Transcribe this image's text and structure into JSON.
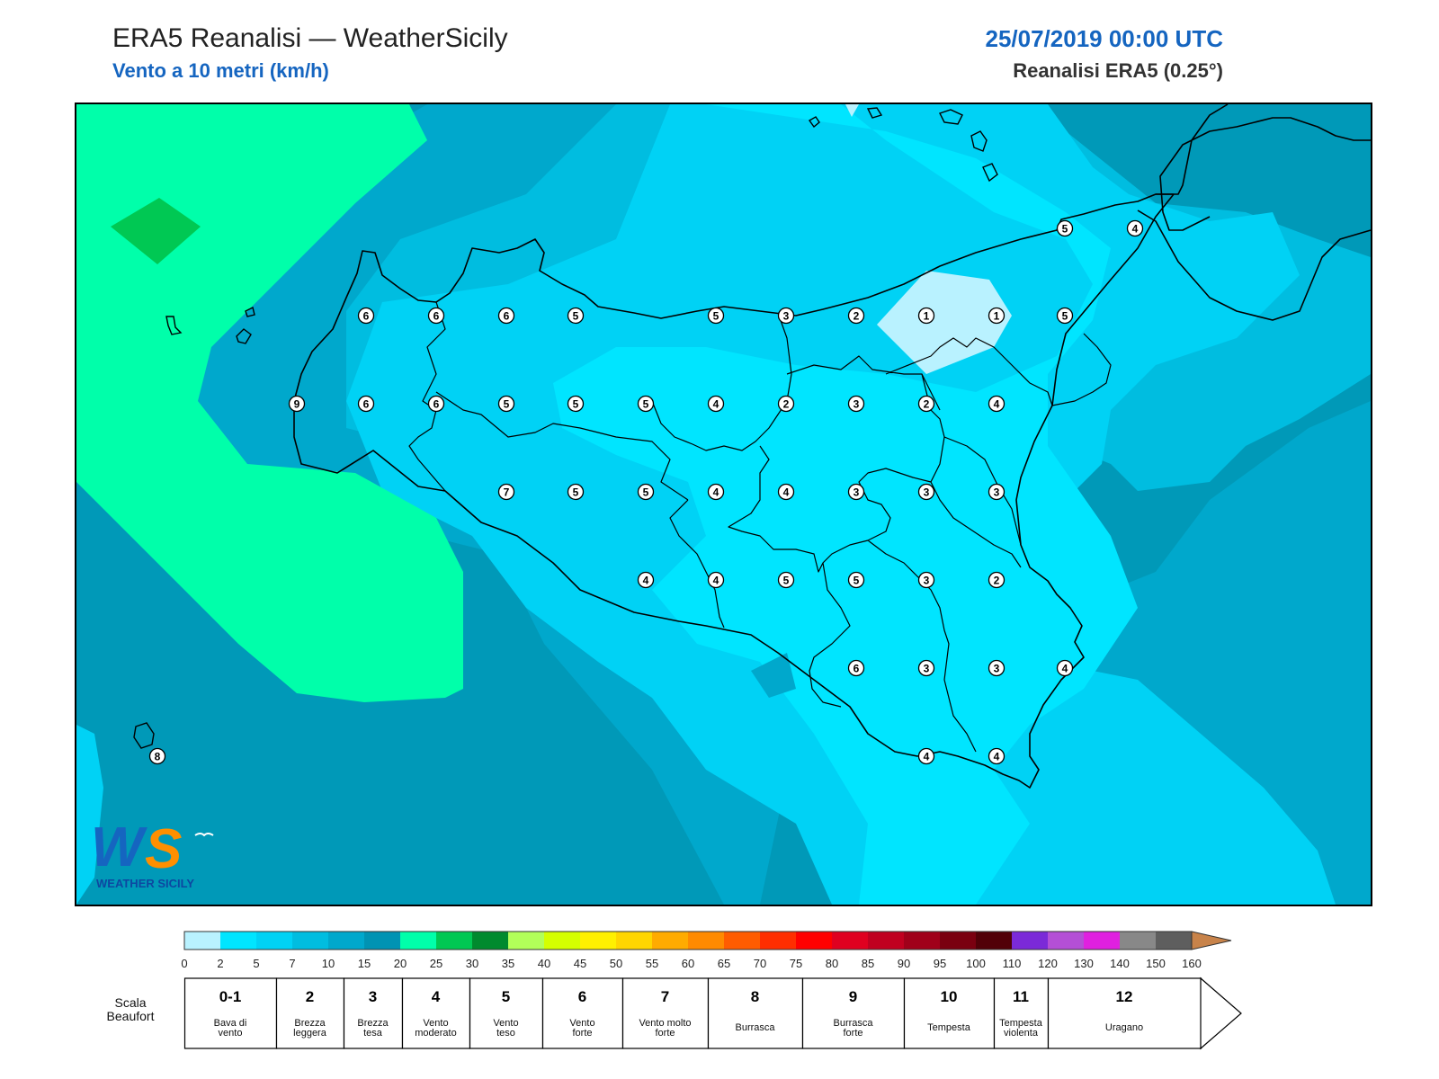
{
  "header": {
    "title": "ERA5 Reanalisi — WeatherSicily",
    "subtitle": "Vento a 10 metri (km/h)",
    "datetime": "25/07/2019 00:00 UTC",
    "source": "Reanalisi ERA5 (0.25°)"
  },
  "logo": {
    "text": "WEATHER SICILY",
    "letters": "WS"
  },
  "wind_labels": [
    {
      "v": "5"
    },
    {
      "v": "4"
    },
    {
      "v": "6"
    },
    {
      "v": "6"
    },
    {
      "v": "6"
    },
    {
      "v": "5"
    },
    {
      "v": "5"
    },
    {
      "v": "3"
    },
    {
      "v": "2"
    },
    {
      "v": "1"
    },
    {
      "v": "1"
    },
    {
      "v": "5"
    },
    {
      "v": "9"
    },
    {
      "v": "6"
    },
    {
      "v": "6"
    },
    {
      "v": "5"
    },
    {
      "v": "5"
    },
    {
      "v": "5"
    },
    {
      "v": "4"
    },
    {
      "v": "2"
    },
    {
      "v": "3"
    },
    {
      "v": "2"
    },
    {
      "v": "4"
    },
    {
      "v": "7"
    },
    {
      "v": "5"
    },
    {
      "v": "5"
    },
    {
      "v": "4"
    },
    {
      "v": "4"
    },
    {
      "v": "3"
    },
    {
      "v": "3"
    },
    {
      "v": "3"
    },
    {
      "v": "4"
    },
    {
      "v": "4"
    },
    {
      "v": "5"
    },
    {
      "v": "5"
    },
    {
      "v": "3"
    },
    {
      "v": "2"
    },
    {
      "v": "6"
    },
    {
      "v": "3"
    },
    {
      "v": "3"
    },
    {
      "v": "4"
    },
    {
      "v": "4"
    },
    {
      "v": "4"
    },
    {
      "v": "8"
    }
  ],
  "colorbar": {
    "ticks": [
      "0",
      "2",
      "5",
      "7",
      "10",
      "15",
      "20",
      "25",
      "30",
      "35",
      "40",
      "45",
      "50",
      "55",
      "60",
      "65",
      "70",
      "75",
      "80",
      "85",
      "90",
      "95",
      "100",
      "110",
      "120",
      "130",
      "140",
      "150",
      "160"
    ],
    "colors": [
      "#b9f2ff",
      "#00e5ff",
      "#00d2f5",
      "#00bde0",
      "#00a8cc",
      "#0093b3",
      "#00ffaa",
      "#00c853",
      "#008a2e",
      "#b2ff59",
      "#d4ff00",
      "#fff000",
      "#ffd600",
      "#ffab00",
      "#ff8a00",
      "#ff5c00",
      "#ff2e00",
      "#ff0000",
      "#e00020",
      "#c00020",
      "#a0001a",
      "#7a0010",
      "#520008",
      "#7b2ad8",
      "#b44fd6",
      "#e020e0",
      "#888888",
      "#5e5e5e",
      "#000000",
      "#8b4a2b",
      "#c8834a"
    ]
  },
  "beaufort": {
    "caption": "Scala Beaufort",
    "classes": [
      {
        "num": "0-1",
        "desc": "Bava di vento"
      },
      {
        "num": "2",
        "desc": "Brezza leggera"
      },
      {
        "num": "3",
        "desc": "Brezza tesa"
      },
      {
        "num": "4",
        "desc": "Vento moderato"
      },
      {
        "num": "5",
        "desc": "Vento teso"
      },
      {
        "num": "6",
        "desc": "Vento forte"
      },
      {
        "num": "7",
        "desc": "Vento molto forte"
      },
      {
        "num": "8",
        "desc": "Burrasca"
      },
      {
        "num": "9",
        "desc": "Burrasca forte"
      },
      {
        "num": "10",
        "desc": "Tempesta"
      },
      {
        "num": "11",
        "desc": "Tempesta violenta"
      },
      {
        "num": "12",
        "desc": "Uragano"
      }
    ]
  }
}
